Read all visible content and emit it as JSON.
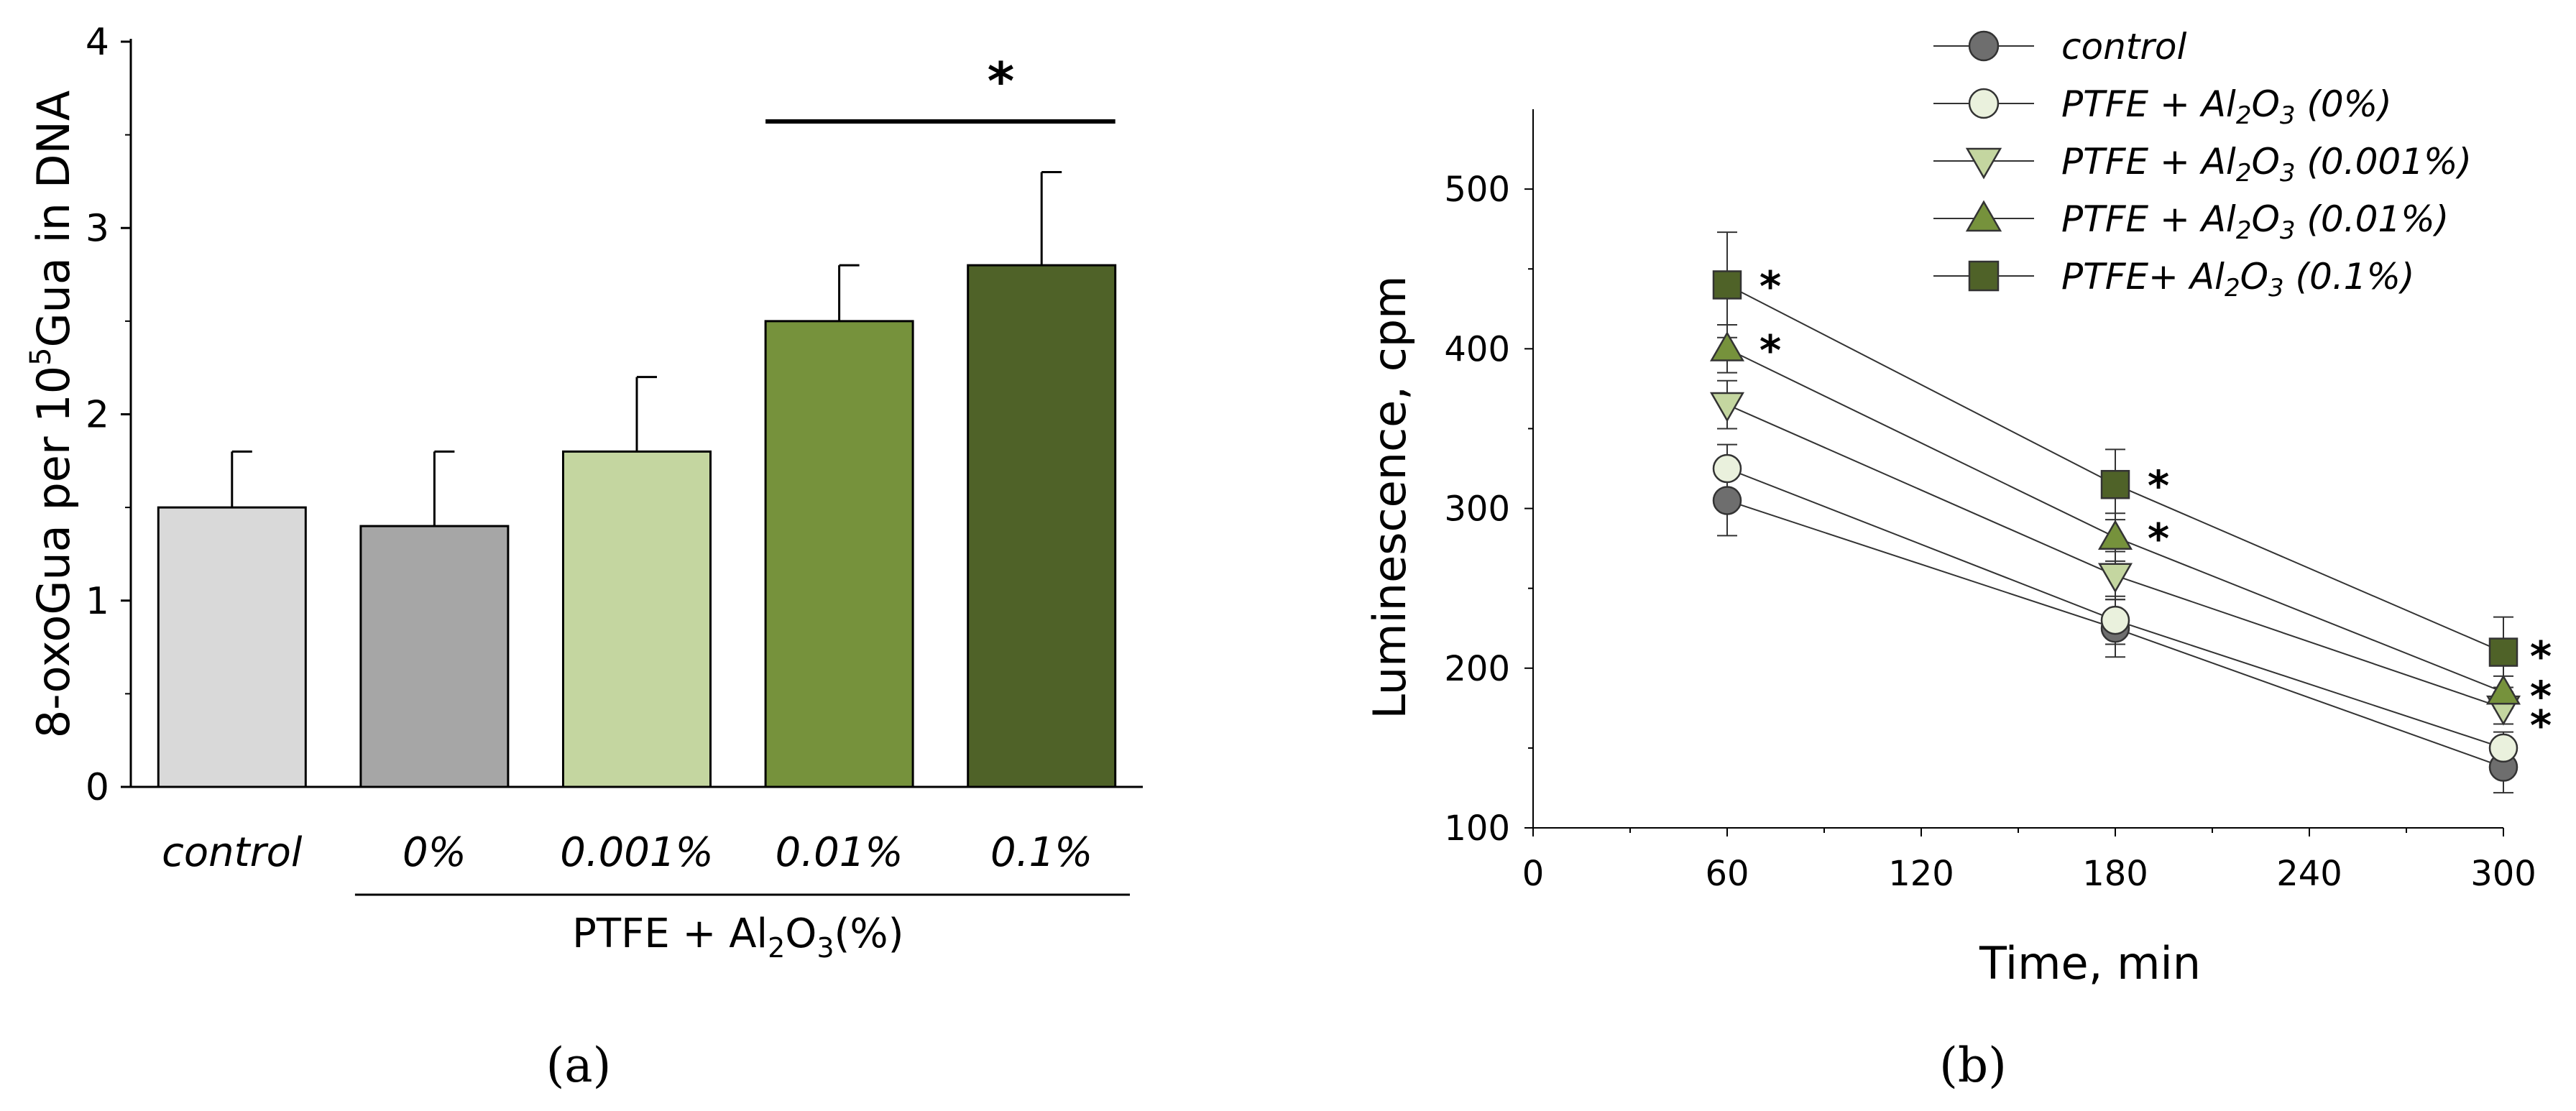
{
  "chart_data": [
    {
      "panel": "(a)",
      "type": "bar",
      "ylabel": "8-oxoGua per 10^5 Gua in DNA",
      "ylabel_parts": {
        "prefix": "8-oxoGua per 10",
        "sup": "5",
        "suffix": "Gua in DNA"
      },
      "ylim": [
        0,
        4
      ],
      "yticks": [
        "0",
        "1",
        "2",
        "3",
        "4"
      ],
      "categories": [
        "control",
        "0%",
        "0.001%",
        "0.01%",
        "0.1%"
      ],
      "values": [
        1.5,
        1.4,
        1.8,
        2.5,
        2.8
      ],
      "errors": [
        0.3,
        0.4,
        0.4,
        0.3,
        0.5
      ],
      "colors": [
        "#d9d9d9",
        "#a6a6a6",
        "#c4d6a0",
        "#76923c",
        "#4f6228"
      ],
      "group_label": "PTFE + Al2O3(%)",
      "group_label_parts": {
        "a": "PTFE + Al",
        "s1": "2",
        "b": "O",
        "s2": "3",
        "c": "(%)"
      },
      "significance": {
        "label": "*",
        "from_category": "0.01%",
        "to_category": "0.1%"
      }
    },
    {
      "panel": "(b)",
      "type": "line",
      "xlabel": "Time, min",
      "ylabel": "Luminescence, cpm",
      "xlim": [
        0,
        300
      ],
      "ylim": [
        100,
        550
      ],
      "xticks": [
        "0",
        "60",
        "120",
        "180",
        "240",
        "300"
      ],
      "yticks": [
        "100",
        "200",
        "300",
        "400",
        "500"
      ],
      "x": [
        60,
        180,
        300
      ],
      "series": [
        {
          "name": "control",
          "marker": "circle",
          "color": "#6e6e6e",
          "values": [
            305,
            225,
            138
          ],
          "errors": [
            22,
            18,
            16
          ],
          "stars": [
            false,
            false,
            false
          ]
        },
        {
          "name": "PTFE + Al2O3 (0%)",
          "marker": "circle",
          "color": "#eaf1dd",
          "values": [
            325,
            230,
            150
          ],
          "errors": [
            15,
            15,
            10
          ],
          "stars": [
            false,
            false,
            false
          ]
        },
        {
          "name": "PTFE + Al2O3 (0.001%)",
          "marker": "triangle-down",
          "color": "#c4d6a0",
          "values": [
            365,
            258,
            175
          ],
          "errors": [
            15,
            15,
            10
          ],
          "stars": [
            false,
            false,
            true
          ]
        },
        {
          "name": "PTFE + Al2O3 (0.01%)",
          "marker": "triangle-up",
          "color": "#76923c",
          "values": [
            400,
            282,
            185
          ],
          "errors": [
            15,
            15,
            10
          ],
          "stars": [
            true,
            true,
            true
          ]
        },
        {
          "name": "PTFE+ Al2O3 (0.1%)",
          "marker": "square",
          "color": "#4f6228",
          "values": [
            440,
            315,
            210
          ],
          "errors": [
            33,
            22,
            22
          ],
          "stars": [
            true,
            true,
            true
          ]
        }
      ],
      "legend_placement": "top-right",
      "legend_labels": [
        {
          "a": "control",
          "sub": "",
          "b": ""
        },
        {
          "a": "PTFE + Al",
          "sub": "2",
          "b": "O",
          "sub2": "3",
          "c": " (0%)"
        },
        {
          "a": "PTFE + Al",
          "sub": "2",
          "b": "O",
          "sub2": "3",
          "c": " (0.001%)"
        },
        {
          "a": "PTFE + Al",
          "sub": "2",
          "b": "O",
          "sub2": "3",
          "c": " (0.01%)"
        },
        {
          "a": "PTFE+ Al",
          "sub": "2",
          "b": "O",
          "sub2": "3",
          "c": " (0.1%)"
        }
      ]
    }
  ]
}
